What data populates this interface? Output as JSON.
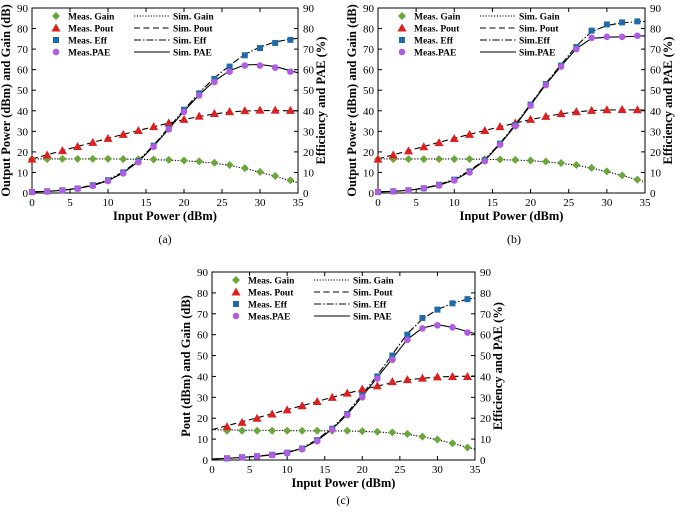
{
  "colors": {
    "gain": "#6aa639",
    "pout": "#dd1f1f",
    "eff": "#1f6aa8",
    "pae": "#b05ce0",
    "line": "#000000"
  },
  "chart_data": [
    {
      "type": "line",
      "caption": "(a)",
      "xlabel": "Input Power (dBm)",
      "ylabel": "Output Power (dBm) and Gain (dB)",
      "y2label": "Efficiency and PAE (%)",
      "xlim": [
        0,
        35
      ],
      "ylim": [
        0,
        90
      ],
      "y2lim": [
        0,
        90
      ],
      "xticks": [
        0,
        5,
        10,
        15,
        20,
        25,
        30,
        35
      ],
      "yticks": [
        0,
        10,
        20,
        30,
        40,
        50,
        60,
        70,
        80,
        90
      ],
      "legend": {
        "meas": [
          "Meas. Gain",
          "Meas. Pout",
          "Meas. Eff",
          "Meas.PAE"
        ],
        "sim": [
          "Sim. Gain",
          "Sim. Pout",
          "Sim. Eff",
          "Sim. PAE"
        ]
      },
      "meas_x": [
        0,
        2,
        4,
        6,
        8,
        10,
        12,
        14,
        16,
        18,
        20,
        22,
        24,
        26,
        28,
        30,
        32,
        34
      ],
      "series": [
        {
          "name": "Meas. Gain",
          "axis": "left",
          "values": [
            16.5,
            16.5,
            16.6,
            16.6,
            16.6,
            16.6,
            16.5,
            16.4,
            16.3,
            16.1,
            15.8,
            15.4,
            14.7,
            13.6,
            12.1,
            10.3,
            8.3,
            6.2
          ]
        },
        {
          "name": "Meas. Pout",
          "axis": "left",
          "values": [
            16.5,
            18.5,
            20.6,
            22.6,
            24.6,
            26.6,
            28.5,
            30.4,
            32.3,
            34.1,
            35.8,
            37.4,
            38.7,
            39.6,
            40.1,
            40.3,
            40.3,
            40.2
          ]
        },
        {
          "name": "Meas. Eff",
          "axis": "right",
          "values": [
            0.5,
            0.8,
            1.3,
            2.2,
            3.8,
            6.2,
            10,
            15.5,
            23,
            31.5,
            40.5,
            48.5,
            55.5,
            61.5,
            67,
            70.5,
            73,
            74.5
          ]
        },
        {
          "name": "Meas.PAE",
          "axis": "right",
          "values": [
            0.5,
            0.7,
            1.2,
            2.1,
            3.5,
            5.8,
            9.5,
            15,
            22.5,
            31,
            39.5,
            47.5,
            54,
            59,
            62,
            62,
            61,
            59
          ]
        }
      ],
      "sim": {
        "x": [
          0,
          2,
          4,
          6,
          8,
          10,
          12,
          14,
          16,
          18,
          20,
          22,
          24,
          26,
          28,
          30,
          32,
          34,
          35
        ],
        "gain": [
          16.6,
          16.6,
          16.6,
          16.6,
          16.6,
          16.6,
          16.5,
          16.4,
          16.2,
          16.0,
          15.7,
          15.2,
          14.5,
          13.4,
          11.9,
          10.1,
          8.1,
          6.0,
          5.0
        ],
        "pout": [
          16.6,
          18.6,
          20.6,
          22.6,
          24.6,
          26.6,
          28.5,
          30.4,
          32.2,
          34.0,
          35.7,
          37.2,
          38.5,
          39.4,
          39.9,
          40.1,
          40.1,
          40.0,
          40.0
        ],
        "eff": [
          0.6,
          0.9,
          1.4,
          2.3,
          3.9,
          6.4,
          10.3,
          15.8,
          23.2,
          31.8,
          40.5,
          48.8,
          56,
          62,
          67.5,
          71,
          73.5,
          74.8,
          75.2
        ],
        "pae": [
          0.6,
          0.8,
          1.3,
          2.2,
          3.6,
          6.0,
          9.8,
          15.3,
          22.7,
          31.2,
          39.8,
          47.8,
          54.5,
          59.5,
          62.3,
          62.5,
          61.5,
          59.5,
          58.5
        ]
      }
    },
    {
      "type": "line",
      "caption": "(b)",
      "xlabel": "Input Power (dBm)",
      "ylabel": "Output Power (dBm) and Gain (dB)",
      "y2label": "Efficiency and PAE (%)",
      "xlim": [
        0,
        35
      ],
      "ylim": [
        0,
        90
      ],
      "y2lim": [
        0,
        90
      ],
      "xticks": [
        0,
        5,
        10,
        15,
        20,
        25,
        30,
        35
      ],
      "yticks": [
        0,
        10,
        20,
        30,
        40,
        50,
        60,
        70,
        80,
        90
      ],
      "legend": {
        "meas": [
          "Meas. Gain",
          "Meas. Pout",
          "Meas. Eff",
          "Meas.PAE"
        ],
        "sim": [
          "Sim. Gain",
          "Sim. Pout",
          "Sim.Eff",
          "Sim.PAE"
        ]
      },
      "meas_x": [
        0,
        2,
        4,
        6,
        8,
        10,
        12,
        14,
        16,
        18,
        20,
        22,
        24,
        26,
        28,
        30,
        32,
        34
      ],
      "series": [
        {
          "name": "Meas. Gain",
          "axis": "left",
          "values": [
            16.5,
            16.5,
            16.5,
            16.5,
            16.5,
            16.5,
            16.5,
            16.4,
            16.3,
            16.1,
            15.8,
            15.3,
            14.6,
            13.6,
            12.2,
            10.5,
            8.6,
            6.5
          ]
        },
        {
          "name": "Meas. Pout",
          "axis": "left",
          "values": [
            16.5,
            18.5,
            20.5,
            22.5,
            24.5,
            26.5,
            28.5,
            30.4,
            32.3,
            34.1,
            35.8,
            37.3,
            38.6,
            39.6,
            40.2,
            40.5,
            40.6,
            40.5
          ]
        },
        {
          "name": "Meas. Eff",
          "axis": "right",
          "values": [
            0.5,
            0.8,
            1.3,
            2.3,
            4,
            6.5,
            10.5,
            16,
            24,
            33,
            43,
            53,
            62,
            71,
            79,
            82,
            83,
            83.5
          ]
        },
        {
          "name": "Meas.PAE",
          "axis": "right",
          "values": [
            0.5,
            0.8,
            1.2,
            2.2,
            3.7,
            6.1,
            10,
            15.5,
            23.5,
            32.5,
            42.5,
            52.5,
            61.5,
            70,
            75.5,
            76,
            76,
            76.5
          ]
        }
      ],
      "sim": {
        "x": [
          0,
          2,
          4,
          6,
          8,
          10,
          12,
          14,
          16,
          18,
          20,
          22,
          24,
          26,
          28,
          30,
          32,
          34,
          35
        ],
        "gain": [
          16.6,
          16.6,
          16.6,
          16.6,
          16.6,
          16.6,
          16.5,
          16.4,
          16.2,
          16.0,
          15.7,
          15.2,
          14.5,
          13.5,
          12.1,
          10.4,
          8.5,
          6.4,
          5.4
        ],
        "pout": [
          16.6,
          18.6,
          20.6,
          22.6,
          24.6,
          26.6,
          28.5,
          30.4,
          32.2,
          34.0,
          35.7,
          37.2,
          38.5,
          39.5,
          40.1,
          40.4,
          40.5,
          40.4,
          40.4
        ],
        "eff": [
          0.6,
          0.9,
          1.4,
          2.4,
          4.1,
          6.7,
          10.8,
          16.3,
          24.3,
          33.3,
          43.3,
          53.3,
          62.5,
          71.5,
          78.5,
          81.5,
          82.8,
          83.3,
          83.5
        ],
        "pae": [
          0.6,
          0.8,
          1.3,
          2.3,
          3.8,
          6.3,
          10.3,
          15.8,
          23.8,
          32.8,
          42.8,
          52.8,
          61.8,
          70.2,
          75.2,
          75.8,
          76,
          76.3,
          76.5
        ]
      }
    },
    {
      "type": "line",
      "caption": "(c)",
      "xlabel": "Input Power (dBm)",
      "ylabel": "Pout (dBm) and Gain (dB)",
      "y2label": "Efficiency and PAE (%)",
      "xlim": [
        0,
        35
      ],
      "ylim": [
        0,
        90
      ],
      "y2lim": [
        0,
        90
      ],
      "xticks": [
        0,
        5,
        10,
        15,
        20,
        25,
        30,
        35
      ],
      "yticks": [
        0,
        10,
        20,
        30,
        40,
        50,
        60,
        70,
        80,
        90
      ],
      "legend": {
        "meas": [
          "Meas. Gain",
          "Meas. Pout",
          "Meas. Eff",
          "Meas.PAE"
        ],
        "sim": [
          "Sim. Gain",
          "Sim. Pout",
          "Sim. Eff",
          "Sim. PAE"
        ]
      },
      "meas_x": [
        2,
        4,
        6,
        8,
        10,
        12,
        14,
        16,
        18,
        20,
        22,
        24,
        26,
        28,
        30,
        32,
        34
      ],
      "series": [
        {
          "name": "Meas. Gain",
          "axis": "left",
          "values": [
            14,
            14,
            14,
            14,
            14,
            14,
            14,
            14,
            14,
            13.8,
            13.5,
            13.2,
            12.5,
            11.2,
            9.8,
            8,
            6
          ]
        },
        {
          "name": "Meas. Pout",
          "axis": "left",
          "values": [
            16,
            18,
            20,
            22,
            24,
            26,
            28,
            30,
            32,
            34,
            35.5,
            37.5,
            38.5,
            39.2,
            39.8,
            40,
            40
          ]
        },
        {
          "name": "Meas. Eff",
          "axis": "right",
          "values": [
            0.8,
            1.3,
            1.8,
            2.5,
            3.5,
            5.5,
            9.5,
            15,
            22,
            31,
            40,
            50,
            60,
            68,
            72,
            75,
            77
          ]
        },
        {
          "name": "Meas.PAE",
          "axis": "right",
          "values": [
            0.8,
            1.2,
            1.7,
            2.4,
            3.3,
            5.2,
            9,
            14.5,
            21.5,
            30,
            39,
            48,
            57.5,
            63,
            64.5,
            63.5,
            61
          ]
        }
      ],
      "sim": {
        "x": [
          0,
          2,
          4,
          6,
          8,
          10,
          12,
          14,
          16,
          18,
          20,
          22,
          24,
          26,
          28,
          30,
          32,
          34,
          35
        ],
        "gain": [
          14.5,
          14.4,
          14.3,
          14.2,
          14.1,
          14.1,
          14.0,
          14.0,
          14.0,
          13.9,
          13.7,
          13.4,
          13.0,
          12.3,
          11.1,
          9.7,
          8.0,
          6.1,
          5.2
        ],
        "pout": [
          14.5,
          16.4,
          18.3,
          20.2,
          22.1,
          24.1,
          26.0,
          28.0,
          30.0,
          31.9,
          33.7,
          35.4,
          37.0,
          38.3,
          39.1,
          39.7,
          40.0,
          40.1,
          40.2
        ],
        "eff": [
          0.5,
          0.8,
          1.3,
          1.8,
          2.6,
          3.7,
          5.8,
          9.8,
          15.3,
          22.5,
          31.5,
          40.5,
          50.5,
          60.5,
          67.5,
          72,
          75,
          77,
          77.5
        ],
        "pae": [
          0.5,
          0.8,
          1.2,
          1.7,
          2.5,
          3.5,
          5.5,
          9.3,
          14.8,
          21.8,
          30.5,
          39.5,
          48.5,
          57.8,
          63.2,
          64.8,
          63.5,
          61.5,
          60.5
        ]
      }
    }
  ]
}
